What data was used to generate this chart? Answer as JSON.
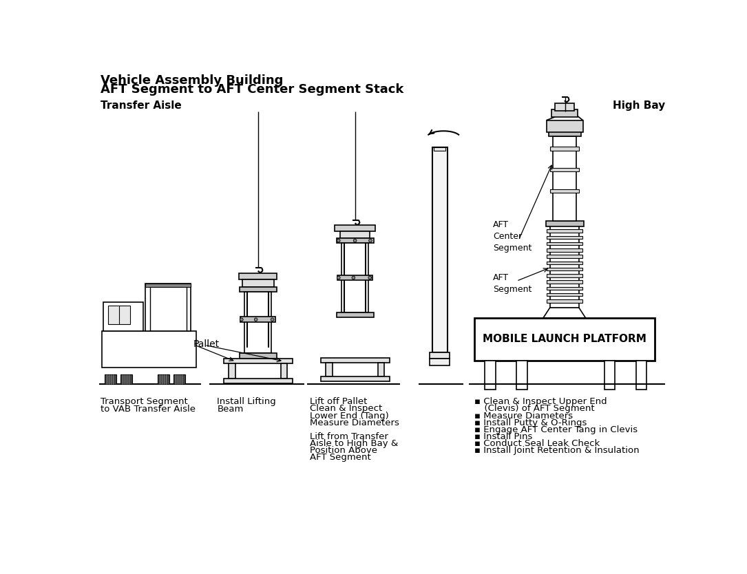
{
  "title_line1": "Vehicle Assembly Building",
  "title_line2": "AFT Segment to AFT Center Segment Stack",
  "label_transfer_aisle": "Transfer Aisle",
  "label_high_bay": "High Bay",
  "label_pallet": "Pallet",
  "label_aft_center": "AFT\nCenter\nSegment",
  "label_aft_segment": "AFT\nSegment",
  "label_mlp": "MOBILE LAUNCH PLATFORM",
  "caption1": [
    "Transport Segment",
    "to VAB Transfer Aisle"
  ],
  "caption2": [
    "Install Lifting",
    "Beam"
  ],
  "caption3": [
    "Lift off Pallet",
    "Clean & Inspect",
    "Lower End (Tang)",
    "Measure Diameters",
    "",
    "Lift from Transfer",
    "Aisle to High Bay &",
    "Position Above",
    "AFT Segment"
  ],
  "caption4_bullets": [
    "Clean & Inspect Upper End",
    "  (Clevis) of AFT Segment",
    "Measure Diameters",
    "Install Putty & O-Rings",
    "Engage AFT Center Tang in Clevis",
    "Install Pins",
    "Conduct Seal Leak Check",
    "Install Joint Retention & Insulation"
  ],
  "bg_color": "#ffffff",
  "line_color": "#000000",
  "title_fontsize": 13,
  "label_fontsize": 11,
  "caption_fontsize": 9.5
}
